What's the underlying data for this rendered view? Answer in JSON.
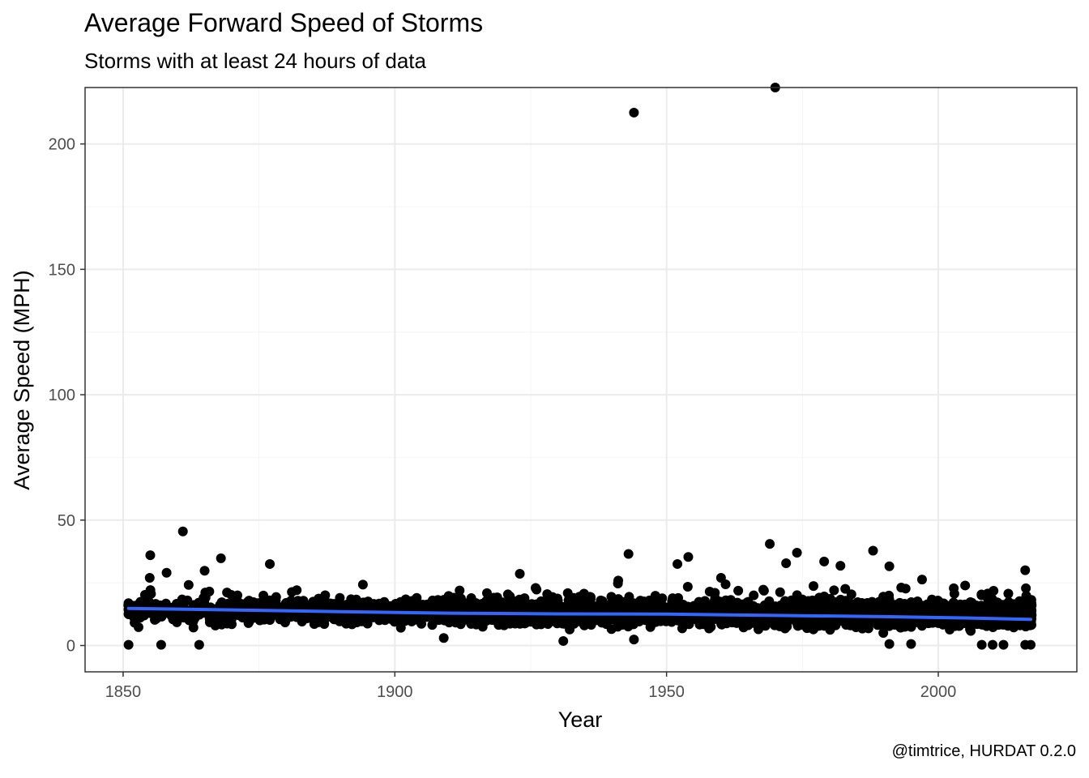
{
  "chart_data": {
    "type": "scatter",
    "title": "Average Forward Speed of Storms",
    "subtitle": "Storms with at least 24 hours of data",
    "caption": "@timtrice, HURDAT 0.2.0",
    "xlabel": "Year",
    "ylabel": "Average Speed (MPH)",
    "xlim": [
      1843,
      2025.5
    ],
    "ylim": [
      -10.5,
      222.5
    ],
    "xticks": [
      1850,
      1900,
      1950,
      2000
    ],
    "yticks": [
      0,
      50,
      100,
      150,
      200
    ],
    "grid": true,
    "colors": {
      "points": "#000000",
      "trend": "#3366FF",
      "grid_major": "#EBEBEB",
      "grid_minor": "#F4F4F4",
      "border": "#333333"
    },
    "point_generation": {
      "year_start": 1851,
      "year_end": 2017,
      "per_year_start": 6,
      "per_year_end": 28,
      "typical_center": 12.0,
      "typical_spread": 4.5,
      "seed": 7
    },
    "notable_points": [
      {
        "x": 1944,
        "y": 212.5
      },
      {
        "x": 1970,
        "y": 223
      },
      {
        "x": 1861,
        "y": 45.5
      },
      {
        "x": 1969,
        "y": 40.5
      },
      {
        "x": 1988,
        "y": 37.8
      },
      {
        "x": 1855,
        "y": 36.0
      },
      {
        "x": 1943,
        "y": 36.5
      },
      {
        "x": 1974,
        "y": 37.0
      },
      {
        "x": 1954,
        "y": 35.3
      },
      {
        "x": 1868,
        "y": 34.8
      },
      {
        "x": 1979,
        "y": 33.5
      },
      {
        "x": 1972,
        "y": 32.8
      },
      {
        "x": 1952,
        "y": 32.5
      },
      {
        "x": 1877,
        "y": 32.5
      },
      {
        "x": 1982,
        "y": 31.8
      },
      {
        "x": 1991,
        "y": 31.6
      },
      {
        "x": 2016,
        "y": 30.0
      },
      {
        "x": 1865,
        "y": 29.8
      },
      {
        "x": 1858,
        "y": 29.0
      },
      {
        "x": 1923,
        "y": 28.6
      },
      {
        "x": 1851,
        "y": 0.3
      },
      {
        "x": 1857,
        "y": 0.3
      },
      {
        "x": 1864,
        "y": 0.3
      },
      {
        "x": 1931,
        "y": 1.8
      },
      {
        "x": 1944,
        "y": 2.4
      },
      {
        "x": 1909,
        "y": 3.0
      },
      {
        "x": 1995,
        "y": 0.6
      },
      {
        "x": 1991,
        "y": 0.6
      },
      {
        "x": 2008,
        "y": 0.3
      },
      {
        "x": 2010,
        "y": 0.3
      },
      {
        "x": 2012,
        "y": 0.3
      },
      {
        "x": 2016,
        "y": 0.3
      },
      {
        "x": 2017,
        "y": 0.3
      }
    ],
    "trend": {
      "x": [
        1851,
        1870,
        1890,
        1910,
        1930,
        1950,
        1970,
        1990,
        2005,
        2017
      ],
      "y": [
        14.8,
        14.2,
        13.5,
        12.9,
        12.6,
        12.5,
        12.0,
        11.5,
        11.0,
        10.4
      ]
    }
  }
}
